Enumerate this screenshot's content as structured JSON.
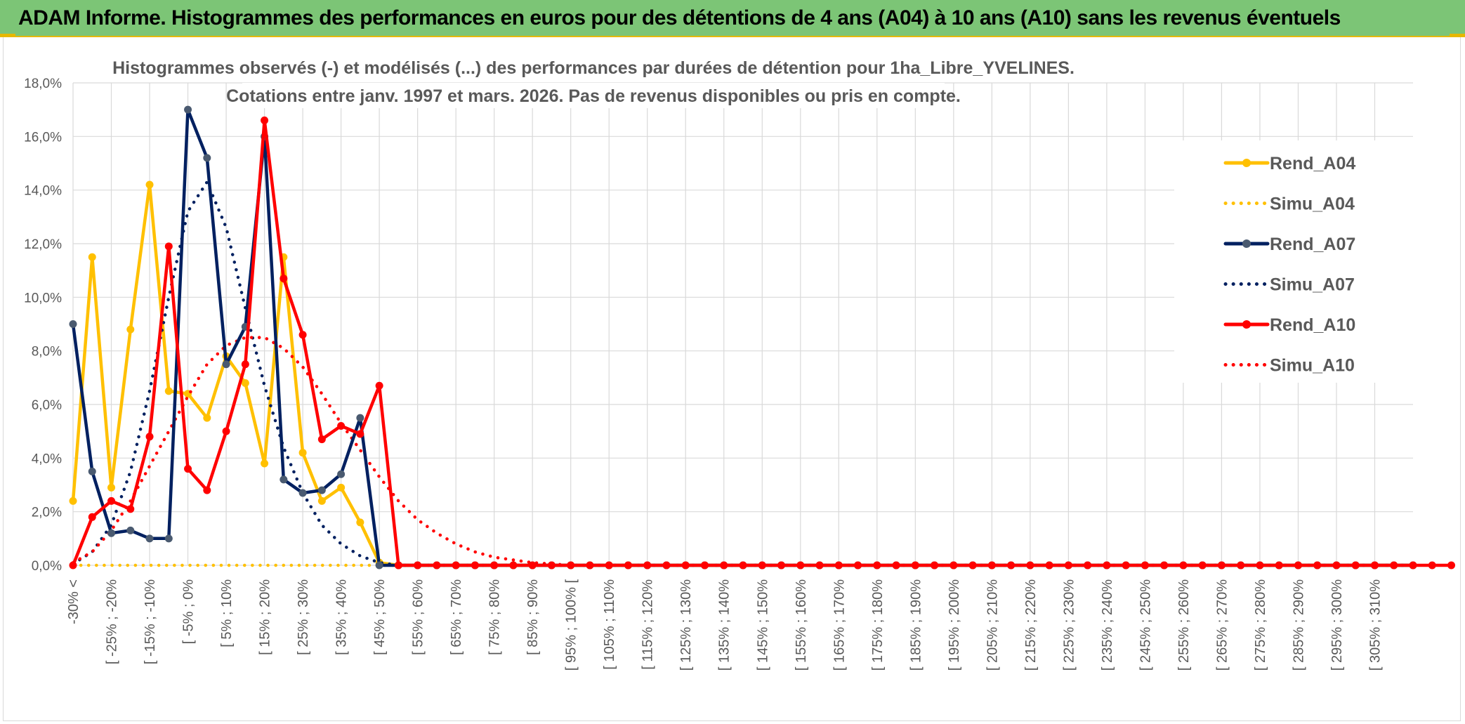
{
  "header": {
    "title": "ADAM Informe. Histogrammes des performances en euros pour des détentions de 4 ans (A04) à 10 ans (A10) sans les revenus éventuels"
  },
  "chart_data": {
    "type": "line",
    "title": "Histogrammes observés (-) et modélisés (...) des performances par durées de détention pour 1ha_Libre_YVELINES.",
    "subtitle": "Cotations entre janv. 1997 et mars. 2026. Pas de revenus disponibles ou pris en compte.",
    "xlabel": "",
    "ylabel": "",
    "ylim": [
      0,
      18
    ],
    "y_ticks": [
      "0,0%",
      "2,0%",
      "4,0%",
      "6,0%",
      "8,0%",
      "10,0%",
      "12,0%",
      "14,0%",
      "16,0%",
      "18,0%"
    ],
    "grid": true,
    "legend_position": "right",
    "x_labels": [
      "-30% <",
      "[ -25% ; -20%",
      "[ -15% ; -10%",
      "[ -5% ; 0%",
      "[ 5% ; 10%",
      "[ 15% ; 20%",
      "[ 25% ; 30%",
      "[ 35% ; 40%",
      "[ 45% ; 50%",
      "[ 55% ; 60%",
      "[ 65% ; 70%",
      "[ 75% ; 80%",
      "[ 85% ; 90%",
      "[ 95% ; 100% [",
      "[ 105% ; 110%",
      "[ 115% ; 120%",
      "[ 125% ; 130%",
      "[ 135% ; 140%",
      "[ 145% ; 150%",
      "[ 155% ; 160%",
      "[ 165% ; 170%",
      "[ 175% ; 180%",
      "[ 185% ; 190%",
      "[ 195% ; 200%",
      "[ 205% ; 210%",
      "[ 215% ; 220%",
      "[ 225% ; 230%",
      "[ 235% ; 240%",
      "[ 245% ; 250%",
      "[ 255% ; 260%",
      "[ 265% ; 270%",
      "[ 275% ; 280%",
      "[ 285% ; 290%",
      "[ 295% ; 300%",
      "[ 305% ; 310%"
    ],
    "series": [
      {
        "name": "Rend_A04",
        "style": "solid",
        "marker": true,
        "color": "#ffc000",
        "values": [
          2.4,
          11.5,
          2.9,
          8.8,
          14.2,
          6.5,
          6.4,
          5.5,
          7.8,
          6.8,
          3.8,
          11.5,
          4.2,
          2.4,
          2.9,
          1.6,
          0.1,
          0,
          0,
          0,
          0,
          0,
          0,
          0,
          0,
          0,
          0,
          0,
          0,
          0,
          0,
          0,
          0,
          0,
          0,
          0,
          0,
          0,
          0,
          0,
          0,
          0,
          0,
          0,
          0,
          0,
          0,
          0,
          0,
          0,
          0,
          0,
          0,
          0,
          0,
          0,
          0,
          0,
          0,
          0,
          0,
          0,
          0,
          0,
          0,
          0,
          0,
          0,
          0,
          0,
          0
        ]
      },
      {
        "name": "Simu_A04",
        "style": "dotted",
        "marker": false,
        "color": "#ffc000",
        "values": [
          0,
          0,
          0,
          0,
          0,
          0,
          0,
          0,
          0,
          0,
          0,
          0,
          0,
          0,
          0,
          0,
          0,
          0,
          0,
          0,
          0,
          0,
          0,
          0,
          0,
          0,
          0,
          0,
          0,
          0,
          0,
          0,
          0,
          0,
          0,
          0,
          0,
          0,
          0,
          0,
          0,
          0,
          0,
          0,
          0,
          0,
          0,
          0,
          0,
          0,
          0,
          0,
          0,
          0,
          0,
          0,
          0,
          0,
          0,
          0,
          0,
          0,
          0,
          0,
          0,
          0,
          0,
          0,
          0,
          0,
          0
        ]
      },
      {
        "name": "Rend_A07",
        "style": "solid",
        "marker": true,
        "color": "#002060",
        "values": [
          9.0,
          3.5,
          1.2,
          1.3,
          1.0,
          1.0,
          17.0,
          15.2,
          7.5,
          8.9,
          16.0,
          3.2,
          2.7,
          2.8,
          3.4,
          5.5,
          0,
          0,
          0,
          0,
          0,
          0,
          0,
          0,
          0,
          0,
          0,
          0,
          0,
          0,
          0,
          0,
          0,
          0,
          0,
          0,
          0,
          0,
          0,
          0,
          0,
          0,
          0,
          0,
          0,
          0,
          0,
          0,
          0,
          0,
          0,
          0,
          0,
          0,
          0,
          0,
          0,
          0,
          0,
          0,
          0,
          0,
          0,
          0,
          0,
          0,
          0,
          0,
          0,
          0,
          0
        ]
      },
      {
        "name": "Simu_A07",
        "style": "dotted",
        "marker": false,
        "color": "#002060",
        "values": [
          0.05,
          0.5,
          1.5,
          3.5,
          6.5,
          10.0,
          13.2,
          14.3,
          12.6,
          9.6,
          6.7,
          4.4,
          2.7,
          1.5,
          0.8,
          0.35,
          0.1,
          0,
          0,
          0,
          0,
          0,
          0,
          0,
          0,
          0,
          0,
          0,
          0,
          0,
          0,
          0,
          0,
          0,
          0,
          0,
          0,
          0,
          0,
          0,
          0,
          0,
          0,
          0,
          0,
          0,
          0,
          0,
          0,
          0,
          0,
          0,
          0,
          0,
          0,
          0,
          0,
          0,
          0,
          0,
          0,
          0,
          0,
          0,
          0,
          0,
          0,
          0,
          0,
          0,
          0
        ]
      },
      {
        "name": "Rend_A10",
        "style": "solid",
        "marker": true,
        "color": "#ff0000",
        "values": [
          0,
          1.8,
          2.4,
          2.1,
          4.8,
          11.9,
          3.6,
          2.8,
          5.0,
          7.5,
          16.6,
          10.7,
          8.6,
          4.7,
          5.2,
          4.9,
          6.7,
          0,
          0,
          0,
          0,
          0,
          0,
          0,
          0,
          0,
          0,
          0,
          0,
          0,
          0,
          0,
          0,
          0,
          0,
          0,
          0,
          0,
          0,
          0,
          0,
          0,
          0,
          0,
          0,
          0,
          0,
          0,
          0,
          0,
          0,
          0,
          0,
          0,
          0,
          0,
          0,
          0,
          0,
          0,
          0,
          0,
          0,
          0,
          0,
          0,
          0,
          0,
          0,
          0,
          0,
          0,
          0
        ]
      },
      {
        "name": "Simu_A10",
        "style": "dotted",
        "marker": false,
        "color": "#ff0000",
        "values": [
          0.1,
          0.5,
          1.3,
          2.4,
          3.7,
          5.0,
          6.3,
          7.5,
          8.2,
          8.5,
          8.5,
          8.1,
          7.4,
          6.4,
          5.3,
          4.3,
          3.3,
          2.4,
          1.7,
          1.2,
          0.8,
          0.5,
          0.3,
          0.2,
          0.1,
          0.05,
          0,
          0,
          0,
          0,
          0,
          0,
          0,
          0,
          0,
          0,
          0,
          0,
          0,
          0,
          0,
          0,
          0,
          0,
          0,
          0,
          0,
          0,
          0,
          0,
          0,
          0,
          0,
          0,
          0,
          0,
          0,
          0,
          0,
          0,
          0,
          0,
          0,
          0,
          0,
          0,
          0,
          0,
          0,
          0,
          0
        ]
      }
    ]
  }
}
